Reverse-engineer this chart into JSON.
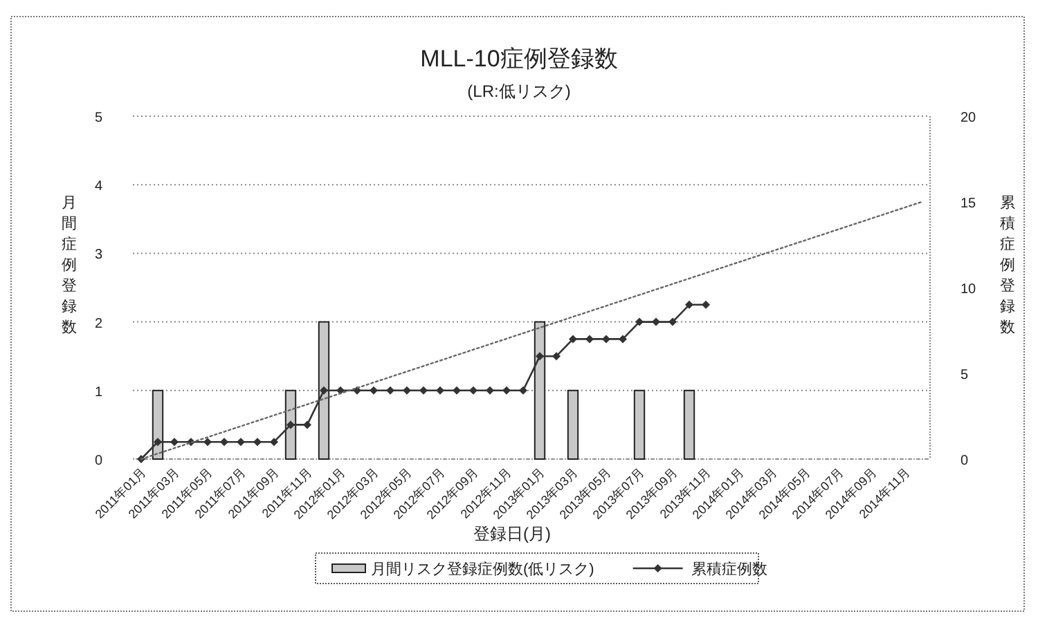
{
  "chart_data": {
    "type": "bar",
    "title": "MLL-10症例登録数",
    "subtitle": "(LR:低リスク)",
    "xlabel": "登録日(月)",
    "ylabel": "月間症例登録数",
    "y2label": "累積症例登録数",
    "categories": [
      "2011年01月",
      null,
      "2011年03月",
      null,
      "2011年05月",
      null,
      "2011年07月",
      null,
      "2011年09月",
      null,
      "2011年11月",
      null,
      "2012年01月",
      null,
      "2012年03月",
      null,
      "2012年05月",
      null,
      "2012年07月",
      null,
      "2012年09月",
      null,
      "2012年11月",
      null,
      "2013年01月",
      null,
      "2013年03月",
      null,
      "2013年05月",
      null,
      "2013年07月",
      null,
      "2013年09月",
      null,
      "2013年11月",
      null,
      "2014年01月",
      null,
      "2014年03月",
      null,
      "2014年05月",
      null,
      "2014年07月",
      null,
      "2014年09月",
      null,
      "2014年11月",
      null
    ],
    "series": [
      {
        "name": "月間リスク登録症例数(低リスク)",
        "type": "bar",
        "color": "#c8c8c8",
        "values": [
          0,
          1,
          0,
          0,
          0,
          0,
          0,
          0,
          0,
          1,
          0,
          2,
          0,
          0,
          0,
          0,
          0,
          0,
          0,
          0,
          0,
          0,
          0,
          0,
          2,
          0,
          1,
          0,
          0,
          0,
          1,
          0,
          0,
          1,
          0,
          null,
          null,
          null,
          null,
          null,
          null,
          null,
          null,
          null,
          null,
          null,
          null,
          null
        ]
      },
      {
        "name": "累積症例数",
        "type": "line",
        "axis": "y2",
        "color": "#333333",
        "marker": "diamond",
        "values": [
          0,
          1,
          1,
          1,
          1,
          1,
          1,
          1,
          1,
          2,
          2,
          4,
          4,
          4,
          4,
          4,
          4,
          4,
          4,
          4,
          4,
          4,
          4,
          4,
          6,
          6,
          7,
          7,
          7,
          7,
          8,
          8,
          8,
          9,
          9,
          null,
          null,
          null,
          null,
          null,
          null,
          null,
          null,
          null,
          null,
          null,
          null,
          null
        ]
      },
      {
        "type": "line",
        "axis": "y2",
        "color": "#666666",
        "line_style": "dotted",
        "values": [
          0,
          null,
          null,
          null,
          null,
          null,
          null,
          null,
          null,
          null,
          null,
          null,
          null,
          null,
          null,
          null,
          null,
          null,
          null,
          null,
          null,
          null,
          null,
          null,
          null,
          null,
          null,
          null,
          null,
          null,
          null,
          null,
          null,
          null,
          null,
          null,
          null,
          null,
          null,
          null,
          null,
          null,
          null,
          null,
          null,
          null,
          null,
          15
        ]
      }
    ],
    "ylim": [
      0,
      5
    ],
    "yticks": [
      0,
      1,
      2,
      3,
      4,
      5
    ],
    "y2lim": [
      0,
      20
    ],
    "y2ticks": [
      0,
      5,
      10,
      15,
      20
    ],
    "grid": "y",
    "legend": "bottom"
  }
}
